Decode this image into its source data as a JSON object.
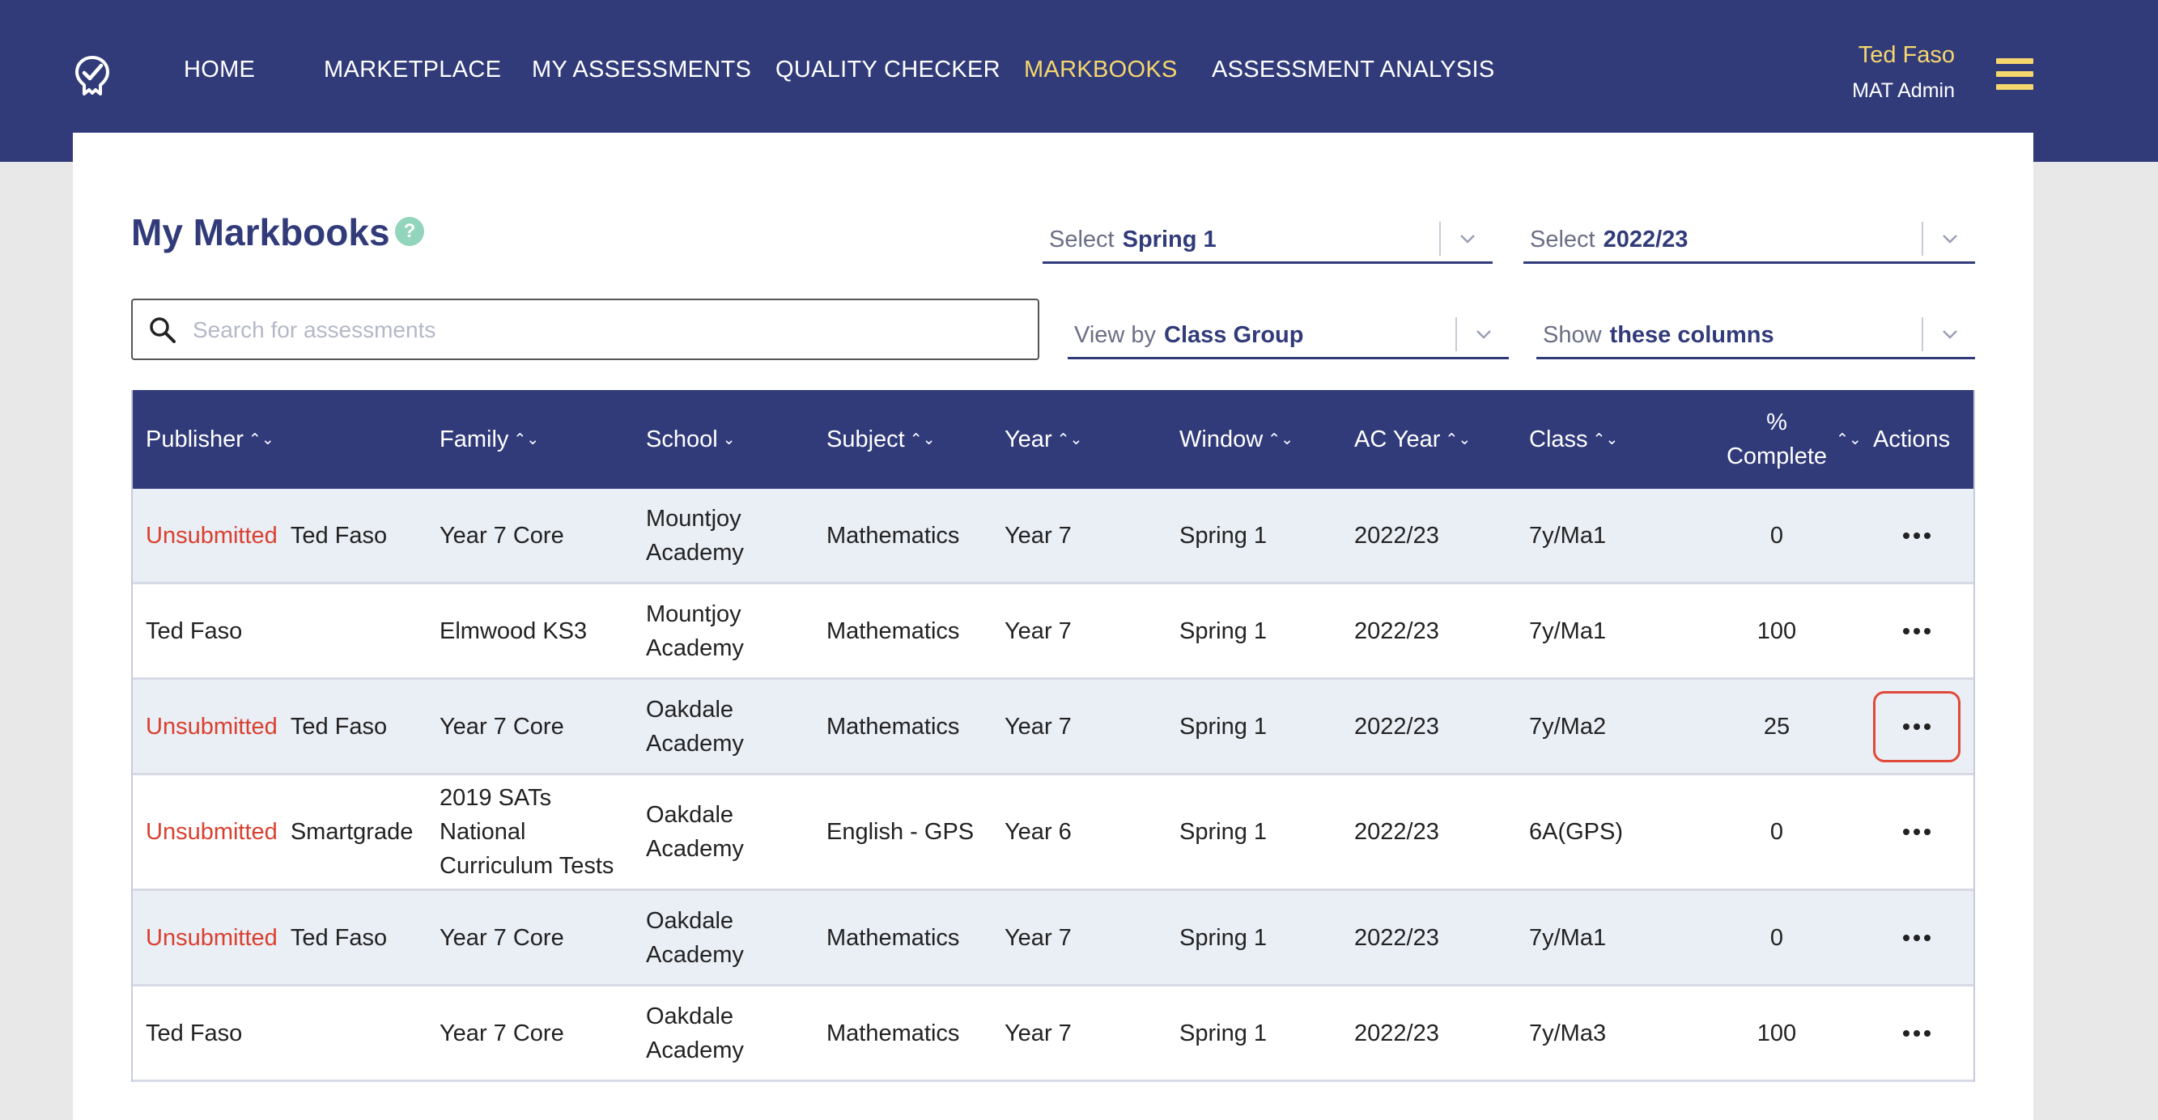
{
  "header": {
    "nav": [
      {
        "label": "HOME",
        "active": false
      },
      {
        "label": "MARKETPLACE",
        "active": false
      },
      {
        "label": "MY ASSESSMENTS",
        "active": false
      },
      {
        "label": "QUALITY CHECKER",
        "active": false
      },
      {
        "label": "MARKBOOKS",
        "active": true
      },
      {
        "label": "ASSESSMENT ANALYSIS",
        "active": false
      }
    ],
    "user": {
      "name": "Ted Faso",
      "role": "MAT Admin"
    },
    "logo_icon": "checkmark-badge-icon",
    "menu_icon": "hamburger-icon"
  },
  "page": {
    "title": "My Markbooks",
    "help": "?"
  },
  "filters": {
    "term": {
      "label": "Select",
      "value": "Spring 1"
    },
    "year": {
      "label": "Select",
      "value": "2022/23"
    },
    "view_by": {
      "label": "View by",
      "value": "Class Group"
    },
    "columns": {
      "label": "Show",
      "value": "these columns"
    }
  },
  "search": {
    "placeholder": "Search for assessments",
    "value": ""
  },
  "table": {
    "headers": {
      "publisher": "Publisher",
      "family": "Family",
      "school": "School",
      "subject": "Subject",
      "year": "Year",
      "window": "Window",
      "ac_year": "AC Year",
      "class": "Class",
      "complete_1": "%",
      "complete_2": "Complete",
      "actions": "Actions"
    },
    "sort_icons": {
      "sortable": "⌃⌄",
      "sorted_desc": "⌄"
    },
    "unsubmitted_label": "Unsubmitted",
    "rows": [
      {
        "unsubmitted": true,
        "publisher": "Ted Faso",
        "family": [
          "Year 7 Core"
        ],
        "school": [
          "Mountjoy",
          "Academy"
        ],
        "subject": "Mathematics",
        "year": "Year 7",
        "window": "Spring 1",
        "ac_year": "2022/23",
        "class": "7y/Ma1",
        "complete": "0",
        "highlighted": false
      },
      {
        "unsubmitted": false,
        "publisher": "Ted Faso",
        "family": [
          "Elmwood KS3"
        ],
        "school": [
          "Mountjoy",
          "Academy"
        ],
        "subject": "Mathematics",
        "year": "Year 7",
        "window": "Spring 1",
        "ac_year": "2022/23",
        "class": "7y/Ma1",
        "complete": "100",
        "highlighted": false
      },
      {
        "unsubmitted": true,
        "publisher": "Ted Faso",
        "family": [
          "Year 7 Core"
        ],
        "school": [
          "Oakdale",
          "Academy"
        ],
        "subject": "Mathematics",
        "year": "Year 7",
        "window": "Spring 1",
        "ac_year": "2022/23",
        "class": "7y/Ma2",
        "complete": "25",
        "highlighted": true
      },
      {
        "unsubmitted": true,
        "publisher": "Smartgrade",
        "family": [
          "2019 SATs",
          "National",
          "Curriculum Tests"
        ],
        "school": [
          "Oakdale",
          "Academy"
        ],
        "subject": "English - GPS",
        "year": "Year 6",
        "window": "Spring 1",
        "ac_year": "2022/23",
        "class": "6A(GPS)",
        "complete": "0",
        "highlighted": false
      },
      {
        "unsubmitted": true,
        "publisher": "Ted Faso",
        "family": [
          "Year 7 Core"
        ],
        "school": [
          "Oakdale",
          "Academy"
        ],
        "subject": "Mathematics",
        "year": "Year 7",
        "window": "Spring 1",
        "ac_year": "2022/23",
        "class": "7y/Ma1",
        "complete": "0",
        "highlighted": false
      },
      {
        "unsubmitted": false,
        "publisher": "Ted Faso",
        "family": [
          "Year 7 Core"
        ],
        "school": [
          "Oakdale",
          "Academy"
        ],
        "subject": "Mathematics",
        "year": "Year 7",
        "window": "Spring 1",
        "ac_year": "2022/23",
        "class": "7y/Ma3",
        "complete": "100",
        "highlighted": false
      }
    ]
  }
}
